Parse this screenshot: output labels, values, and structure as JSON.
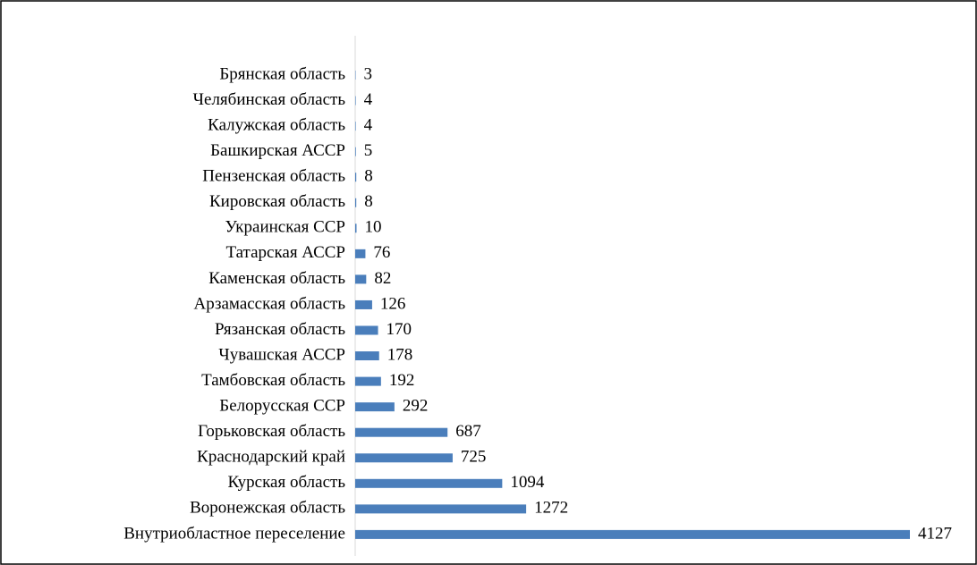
{
  "chart_data": {
    "type": "bar",
    "orientation": "horizontal",
    "categories": [
      "Брянская область",
      "Челябинская область",
      "Калужская область",
      "Башкирская АССР",
      "Пензенская область",
      "Кировская область",
      "Украинская ССР",
      "Татарская АССР",
      "Каменская область",
      "Арзамасская область",
      "Рязанская область",
      "Чувашская АССР",
      "Тамбовская область",
      "Белорусская ССР",
      "Горьковская область",
      "Краснодарский край",
      "Курская область",
      "Воронежская область",
      "Внутриобластное переселение"
    ],
    "values": [
      3,
      4,
      4,
      5,
      8,
      8,
      10,
      76,
      82,
      126,
      170,
      178,
      192,
      292,
      687,
      725,
      1094,
      1272,
      4127
    ],
    "color": "#4a7ebb"
  }
}
